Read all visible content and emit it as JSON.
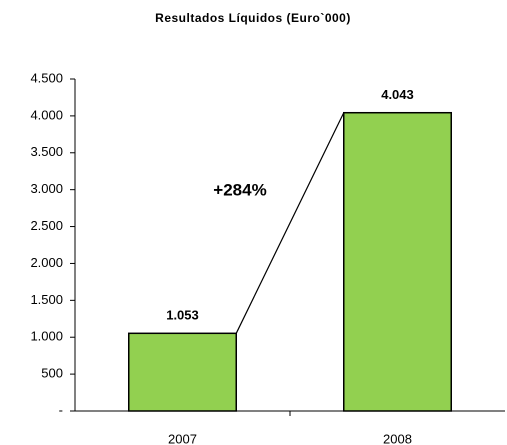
{
  "chart_data": {
    "type": "bar",
    "title": "Resultados Líquidos (Euro`000)",
    "categories": [
      "2007",
      "2008"
    ],
    "values": [
      1053,
      4043
    ],
    "value_labels": [
      "1.053",
      "4.043"
    ],
    "color": "#92d050",
    "annotation": "+284%",
    "ylim": [
      0,
      4500
    ],
    "yticks": [
      {
        "value": 0,
        "label": "-"
      },
      {
        "value": 500,
        "label": "500"
      },
      {
        "value": 1000,
        "label": "1.000"
      },
      {
        "value": 1500,
        "label": "1.500"
      },
      {
        "value": 2000,
        "label": "2.000"
      },
      {
        "value": 2500,
        "label": "2.500"
      },
      {
        "value": 3000,
        "label": "3.000"
      },
      {
        "value": 3500,
        "label": "3.500"
      },
      {
        "value": 4000,
        "label": "4.000"
      },
      {
        "value": 4500,
        "label": "4.500"
      }
    ],
    "grid": false
  }
}
